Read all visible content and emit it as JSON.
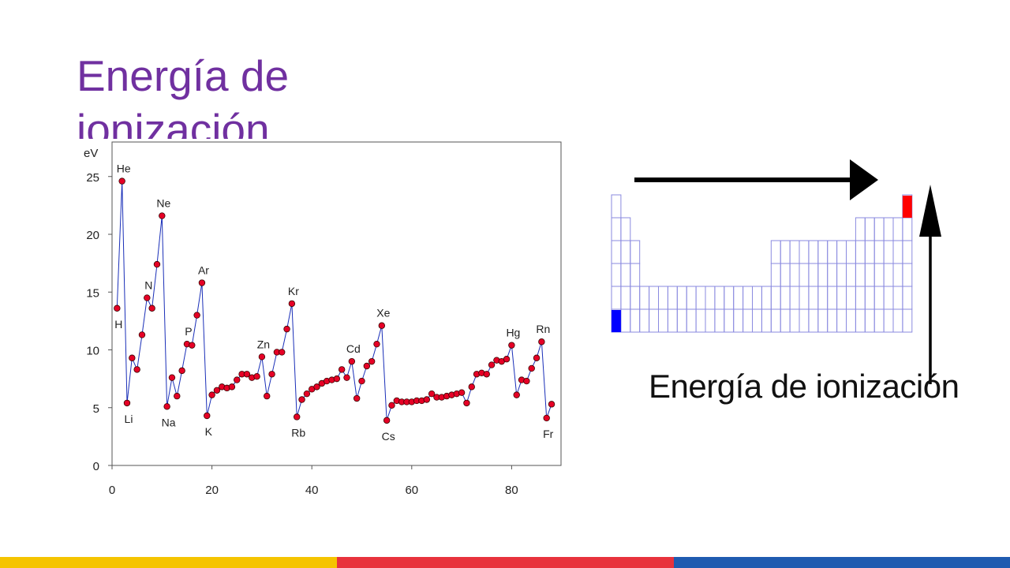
{
  "slide": {
    "title": "Energía de ionización"
  },
  "chart_data": {
    "type": "line",
    "ylabel": "eV",
    "xlim": [
      0,
      90
    ],
    "ylim": [
      0,
      27
    ],
    "xticks": [
      0,
      20,
      40,
      60,
      80
    ],
    "yticks": [
      0,
      5,
      10,
      15,
      20,
      25
    ],
    "markers": true,
    "grid": false,
    "series": [
      {
        "x": [
          1,
          2,
          3,
          4,
          5,
          6,
          7,
          8,
          9,
          10,
          11,
          12,
          13,
          14,
          15,
          16,
          17,
          18,
          19,
          20,
          21,
          22,
          23,
          24,
          25,
          26,
          27,
          28,
          29,
          30,
          31,
          32,
          33,
          34,
          35,
          36,
          37,
          38,
          39,
          40,
          41,
          42,
          43,
          44,
          45,
          46,
          47,
          48,
          49,
          50,
          51,
          52,
          53,
          54,
          55,
          56,
          57,
          58,
          59,
          60,
          61,
          62,
          63,
          64,
          65,
          66,
          67,
          68,
          69,
          70,
          71,
          72,
          73,
          74,
          75,
          76,
          77,
          78,
          79,
          80,
          81,
          82,
          83,
          84,
          85,
          86,
          87,
          88
        ],
        "values": [
          13.6,
          24.6,
          5.4,
          9.3,
          8.3,
          11.3,
          14.5,
          13.6,
          17.4,
          21.6,
          5.1,
          7.6,
          6.0,
          8.2,
          10.5,
          10.4,
          13.0,
          15.8,
          4.3,
          6.1,
          6.5,
          6.8,
          6.7,
          6.8,
          7.4,
          7.9,
          7.9,
          7.6,
          7.7,
          9.4,
          6.0,
          7.9,
          9.8,
          9.8,
          11.8,
          14.0,
          4.2,
          5.7,
          6.2,
          6.6,
          6.8,
          7.1,
          7.3,
          7.4,
          7.5,
          8.3,
          7.6,
          9.0,
          5.8,
          7.3,
          8.6,
          9.0,
          10.5,
          12.1,
          3.9,
          5.2,
          5.6,
          5.5,
          5.5,
          5.5,
          5.6,
          5.6,
          5.7,
          6.2,
          5.9,
          5.9,
          6.0,
          6.1,
          6.2,
          6.3,
          5.4,
          6.8,
          7.9,
          8.0,
          7.9,
          8.7,
          9.1,
          9.0,
          9.2,
          10.4,
          6.1,
          7.4,
          7.3,
          8.4,
          9.3,
          10.7,
          4.1,
          5.3
        ]
      }
    ],
    "annotations": [
      {
        "text": "He",
        "x": 2,
        "pos": "above"
      },
      {
        "text": "Ne",
        "x": 10,
        "pos": "above"
      },
      {
        "text": "N",
        "x": 7,
        "pos": "above"
      },
      {
        "text": "Ar",
        "x": 18,
        "pos": "above"
      },
      {
        "text": "P",
        "x": 15,
        "pos": "above"
      },
      {
        "text": "Zn",
        "x": 30,
        "pos": "above"
      },
      {
        "text": "Kr",
        "x": 36,
        "pos": "above"
      },
      {
        "text": "Cd",
        "x": 48,
        "pos": "above"
      },
      {
        "text": "Xe",
        "x": 54,
        "pos": "above"
      },
      {
        "text": "Hg",
        "x": 80,
        "pos": "above"
      },
      {
        "text": "Rn",
        "x": 86,
        "pos": "above"
      },
      {
        "text": "H",
        "x": 1,
        "pos": "below"
      },
      {
        "text": "Li",
        "x": 3,
        "pos": "below"
      },
      {
        "text": "Na",
        "x": 11,
        "pos": "below"
      },
      {
        "text": "K",
        "x": 19,
        "pos": "below"
      },
      {
        "text": "Rb",
        "x": 37,
        "pos": "below"
      },
      {
        "text": "Cs",
        "x": 55,
        "pos": "below"
      },
      {
        "text": "Fr",
        "x": 87,
        "pos": "below"
      }
    ]
  },
  "periodic_table": {
    "label": "Energía de ionización",
    "lowest_color": "#0000ff",
    "highest_color": "#ff0000",
    "grid_color": "#8a8adf"
  },
  "colors": {
    "title": "#7030a0",
    "marker_fill": "#e60026",
    "line": "#1a2fb8",
    "footer": [
      "#f5c400",
      "#e8323c",
      "#1f5bb0"
    ]
  }
}
